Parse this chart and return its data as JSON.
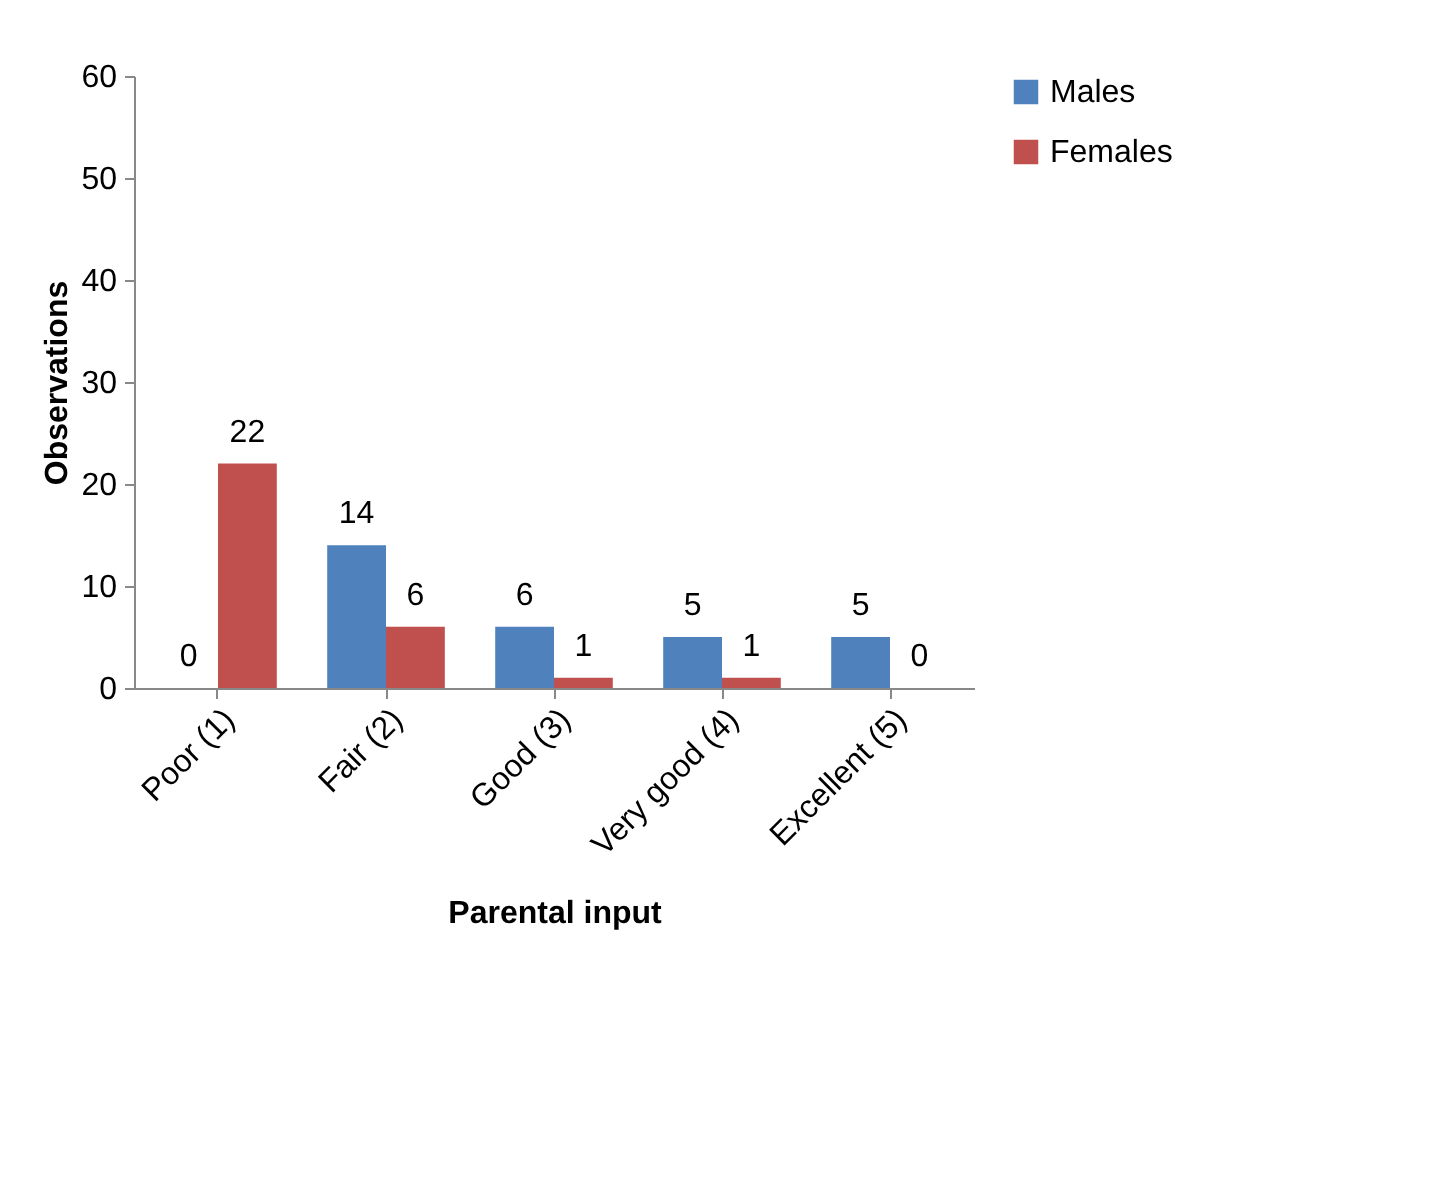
{
  "chart_data": {
    "type": "bar",
    "xlabel": "Parental input",
    "ylabel": "Observations",
    "categories": [
      "Poor (1)",
      "Fair (2)",
      "Good (3)",
      "Very good (4)",
      "Excellent (5)"
    ],
    "series": [
      {
        "name": "Males",
        "color": "#4f81bd",
        "values": [
          0,
          14,
          6,
          5,
          5
        ]
      },
      {
        "name": "Females",
        "color": "#c0504d",
        "values": [
          22,
          6,
          1,
          1,
          0
        ]
      }
    ],
    "ylim": [
      0,
      60
    ],
    "yticks": [
      0,
      10,
      20,
      30,
      40,
      50,
      60
    ],
    "grid": false,
    "legend": "right",
    "data_labels": true
  }
}
